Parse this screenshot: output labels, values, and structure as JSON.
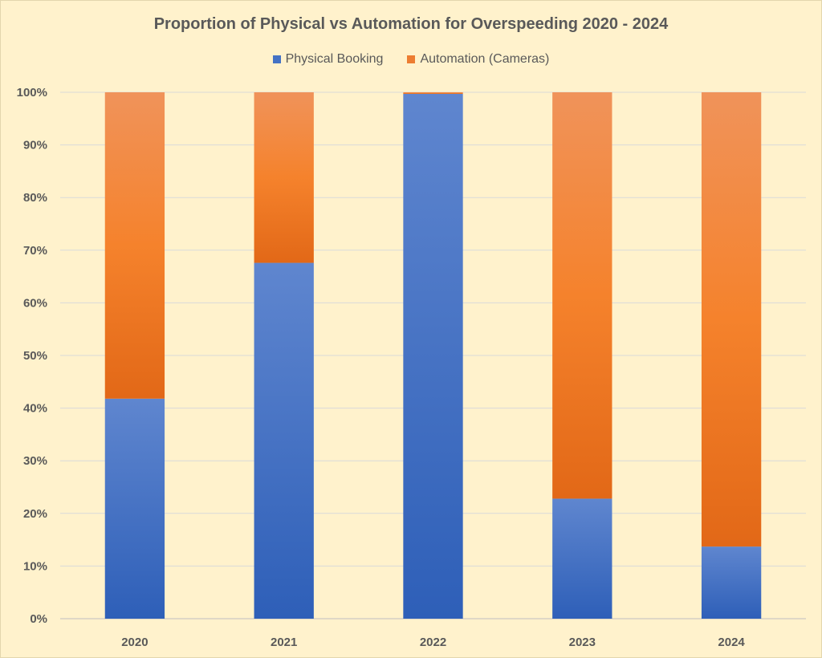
{
  "chart_data": {
    "type": "bar",
    "stacked": true,
    "percent": true,
    "title": "Proportion of Physical vs Automation for Overspeeding 2020 - 2024",
    "xlabel": "",
    "ylabel": "",
    "categories": [
      "2020",
      "2021",
      "2022",
      "2023",
      "2024"
    ],
    "series": [
      {
        "name": "Physical Booking",
        "values": [
          41.8,
          67.6,
          99.7,
          22.8,
          13.7
        ],
        "color": "#4472c4"
      },
      {
        "name": "Automation (Cameras)",
        "values": [
          58.2,
          32.4,
          0.3,
          77.2,
          86.3
        ],
        "color": "#ed7d31"
      }
    ],
    "ylim": [
      0,
      100
    ],
    "yticks": [
      "0%",
      "10%",
      "20%",
      "30%",
      "40%",
      "50%",
      "60%",
      "70%",
      "80%",
      "90%",
      "100%"
    ],
    "grid": true,
    "legend": "top"
  }
}
